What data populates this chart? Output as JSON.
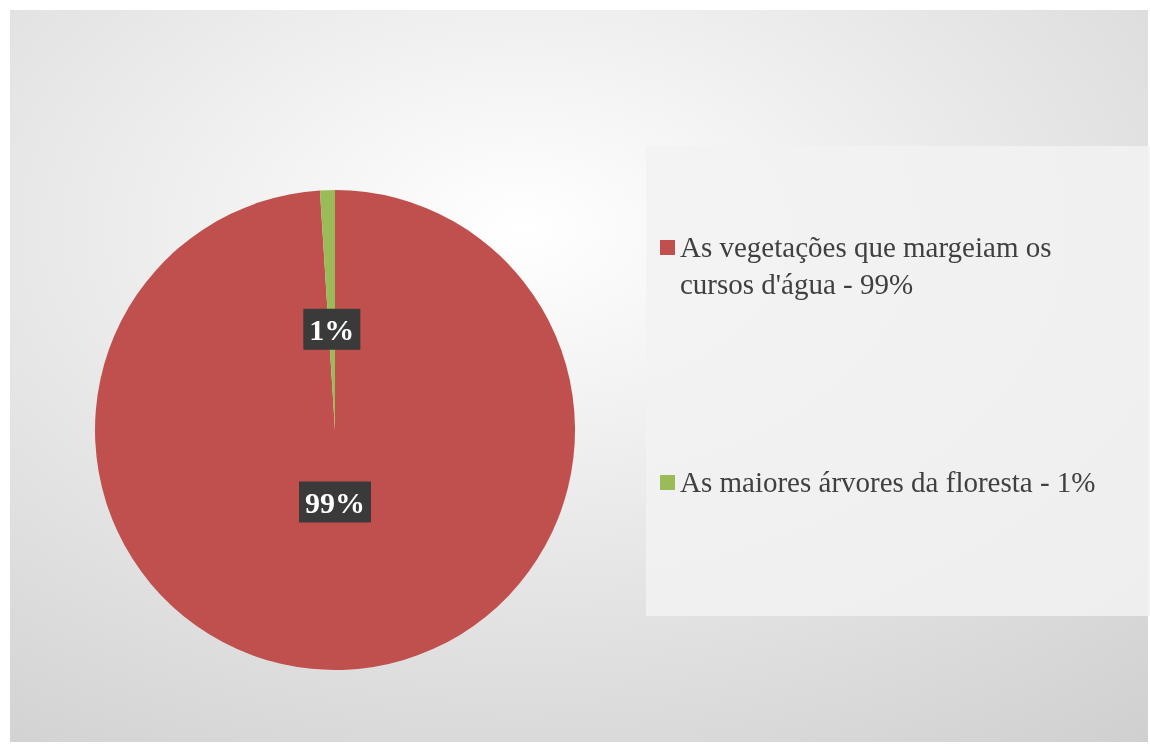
{
  "chart_data": {
    "type": "pie",
    "categories": [
      "As vegetações que margeiam os cursos d'água - 99%",
      "As maiores árvores da floresta - 1%"
    ],
    "values": [
      99,
      1
    ],
    "colors": [
      "#c0504d",
      "#9bbb59"
    ],
    "value_labels": [
      "99%",
      "1%"
    ],
    "legend": "right"
  }
}
